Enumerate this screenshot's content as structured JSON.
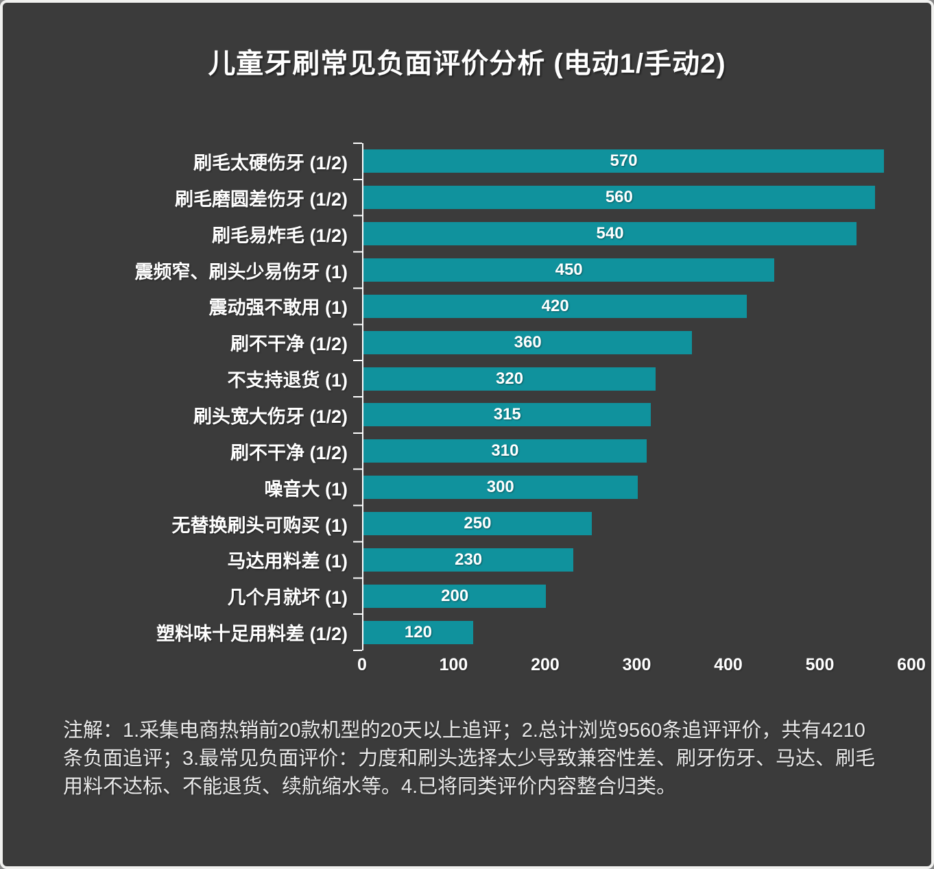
{
  "frame": {
    "background_color": "#3b3b3b",
    "border_color": "#f1f1ef"
  },
  "title": {
    "text": "儿童牙刷常见负面评价分析 (电动1/手动2)",
    "color": "#ffffff"
  },
  "chart_data": {
    "type": "bar",
    "orientation": "horizontal",
    "title": "儿童牙刷常见负面评价分析 (电动1/手动2)",
    "categories": [
      "刷毛太硬伤牙 (1/2)",
      "刷毛磨圆差伤牙 (1/2)",
      "刷毛易炸毛 (1/2)",
      "震频窄、刷头少易伤牙 (1)",
      "震动强不敢用 (1)",
      "刷不干净 (1/2)",
      "不支持退货 (1)",
      "刷头宽大伤牙 (1/2)",
      "刷不干净 (1/2)",
      "噪音大 (1)",
      "无替换刷头可购买 (1)",
      "马达用料差 (1)",
      "几个月就坏 (1)",
      "塑料味十足用料差 (1/2)"
    ],
    "values": [
      570,
      560,
      540,
      450,
      420,
      360,
      320,
      315,
      310,
      300,
      250,
      230,
      200,
      120
    ],
    "xlim": [
      0,
      600
    ],
    "x_ticks": [
      0,
      100,
      200,
      300,
      400,
      500,
      600
    ],
    "bar_color": "#10929d",
    "category_label_color": "#ffffff",
    "value_label_color": "#ffffff",
    "value_label_position": "center-inside-bar",
    "grid": false,
    "legend": false
  },
  "note": {
    "text": "注解：1.采集电商热销前20款机型的20天以上追评；2.总计浏览9560条追评评价，共有4210条负面追评；3.最常见负面评价：力度和刷头选择太少导致兼容性差、刷牙伤牙、马达、刷毛用料不达标、不能退货、续航缩水等。4.已将同类评价内容整合归类。"
  }
}
